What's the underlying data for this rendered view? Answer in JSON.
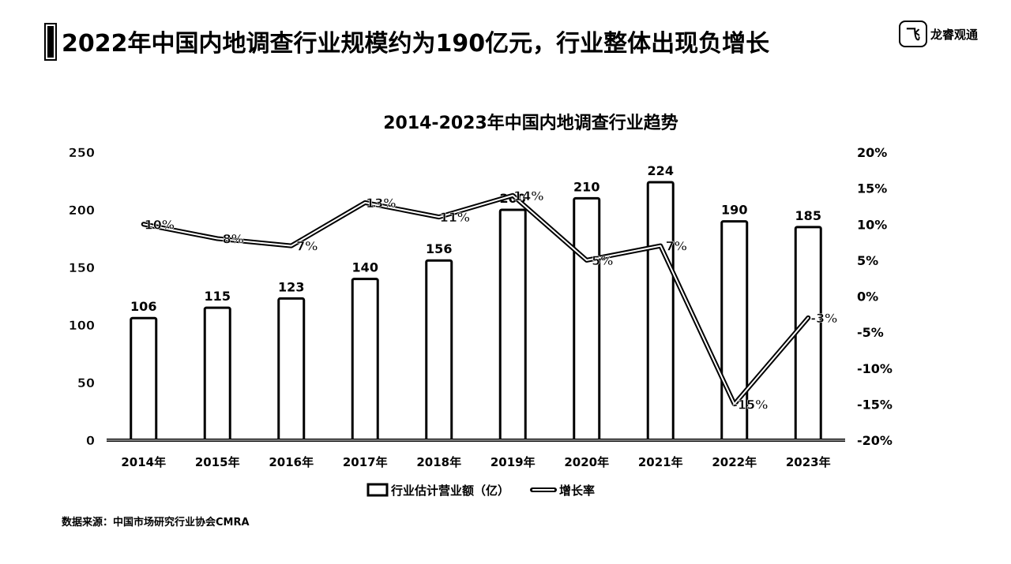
{
  "header": {
    "title": "2022年中国内地调查行业规模约为190亿元，行业整体出现负增长",
    "logo_text": "龙睿观通",
    "logo_mark": "飞"
  },
  "footer": {
    "source": "数据来源：中国市场研究行业协会CMRA"
  },
  "chart_data": {
    "type": "bar",
    "title": "2014-2023年中国内地调查行业趋势",
    "categories": [
      "2014年",
      "2015年",
      "2016年",
      "2017年",
      "2018年",
      "2019年",
      "2020年",
      "2021年",
      "2022年",
      "2023年"
    ],
    "series": [
      {
        "name": "行业估计营业额（亿）",
        "type": "bar",
        "axis": "left",
        "values": [
          106,
          115,
          123,
          140,
          156,
          200,
          210,
          224,
          190,
          185
        ],
        "labels": [
          "106",
          "115",
          "123",
          "140",
          "156",
          "200",
          "210",
          "224",
          "190",
          "185"
        ]
      },
      {
        "name": "增长率",
        "type": "line",
        "axis": "right",
        "values": [
          10,
          8,
          7,
          13,
          11,
          14,
          5,
          7,
          -15,
          -3
        ],
        "labels": [
          "10%",
          "8%",
          "7%",
          "13%",
          "11%",
          "14%",
          "5%",
          "7%",
          "-15%",
          "-3%"
        ]
      }
    ],
    "y_left": {
      "min": 0,
      "max": 250,
      "ticks": [
        0,
        50,
        100,
        150,
        200,
        250
      ],
      "tick_labels": [
        "0",
        "50",
        "100",
        "150",
        "200",
        "250"
      ]
    },
    "y_right": {
      "min": -20,
      "max": 20,
      "ticks": [
        -20,
        -15,
        -10,
        -5,
        0,
        5,
        10,
        15,
        20
      ],
      "tick_labels": [
        "-20%",
        "-15%",
        "-10%",
        "-5%",
        "0%",
        "5%",
        "10%",
        "15%",
        "20%"
      ]
    },
    "legend": {
      "position": "bottom"
    },
    "grid": false,
    "colors": {
      "bar_fill": "#ffffff",
      "stroke": "#000000",
      "line": "#000000"
    }
  }
}
